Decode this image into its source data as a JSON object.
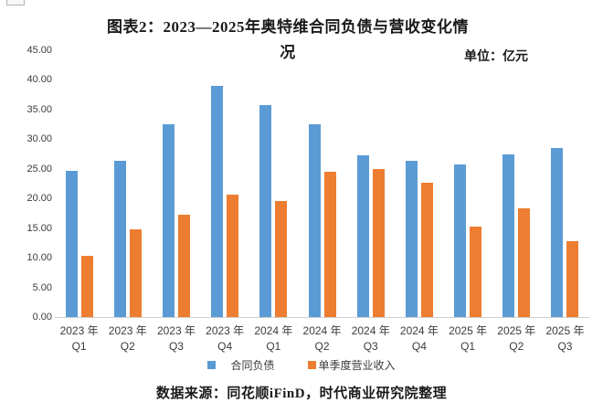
{
  "page": {
    "title_line1": "图表2：2023—2025年奥特维合同负债与营收变化情",
    "title_line2": "况",
    "unit_label": "单位：亿元",
    "source_note": "数据来源：同花顺iFinD，时代商业研究院整理"
  },
  "colors": {
    "series1": "#5B9BD5",
    "series2": "#ED7D31",
    "axis_line": "#cfcfcf",
    "axis_text": "#3b3b3b"
  },
  "chart_data": {
    "type": "bar",
    "title": "图表2：2023—2025年奥特维合同负债与营收变化情况",
    "unit": "亿元",
    "categories": [
      {
        "year": "2023 年",
        "quarter": "Q1"
      },
      {
        "year": "2023 年",
        "quarter": "Q2"
      },
      {
        "year": "2023 年",
        "quarter": "Q3"
      },
      {
        "year": "2023 年",
        "quarter": "Q4"
      },
      {
        "year": "2024 年",
        "quarter": "Q1"
      },
      {
        "year": "2024 年",
        "quarter": "Q2"
      },
      {
        "year": "2024 年",
        "quarter": "Q3"
      },
      {
        "year": "2024 年",
        "quarter": "Q4"
      },
      {
        "year": "2025 年",
        "quarter": "Q1"
      },
      {
        "year": "2025 年",
        "quarter": "Q2"
      },
      {
        "year": "2025 年",
        "quarter": "Q3"
      }
    ],
    "series": [
      {
        "name": "合同负债",
        "color": "#5B9BD5",
        "values": [
          24.6,
          26.4,
          32.6,
          39.0,
          35.7,
          32.6,
          27.3,
          26.3,
          25.7,
          27.5,
          28.5
        ]
      },
      {
        "name": "单季度营业收入",
        "color": "#ED7D31",
        "values": [
          10.3,
          14.8,
          17.2,
          20.6,
          19.6,
          24.5,
          25.0,
          22.7,
          15.2,
          18.4,
          12.8
        ]
      }
    ],
    "ylim": [
      0,
      45
    ],
    "ytick_step": 5,
    "ytick_labels": [
      "45.00",
      "40.00",
      "35.00",
      "30.00",
      "25.00",
      "20.00",
      "15.00",
      "10.00",
      "5.00",
      "0.00"
    ],
    "grid": false,
    "legend_position": "bottom"
  }
}
